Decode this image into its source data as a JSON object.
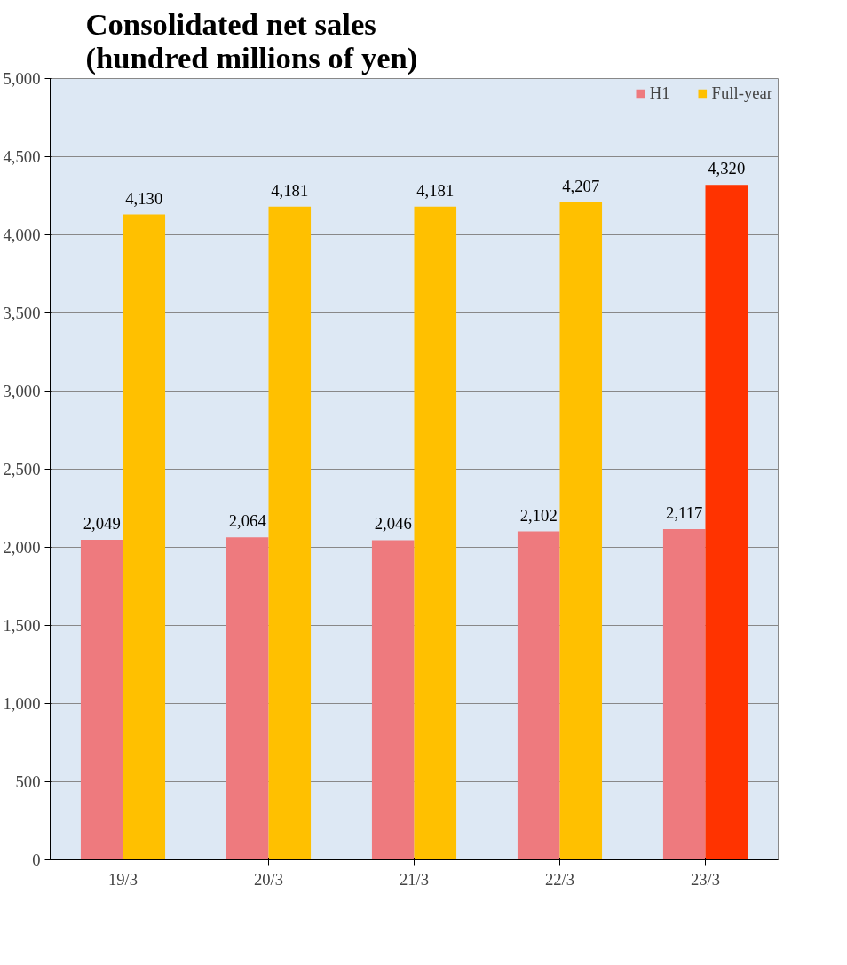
{
  "chart_data": {
    "type": "bar",
    "title": "Consolidated net sales\n(hundred millions of yen)",
    "categories": [
      "19/3",
      "20/3",
      "21/3",
      "22/3",
      "23/3"
    ],
    "series": [
      {
        "name": "H1",
        "color": "#ee7a7e",
        "values": [
          2049,
          2064,
          2046,
          2102,
          2117
        ],
        "value_labels": [
          "2,049",
          "2,064",
          "2,046",
          "2,102",
          "2,117"
        ]
      },
      {
        "name": "Full-year",
        "color": "#ffc000",
        "colors": [
          "#ffc000",
          "#ffc000",
          "#ffc000",
          "#ffc000",
          "#ff3300"
        ],
        "values": [
          4130,
          4181,
          4181,
          4207,
          4320
        ],
        "value_labels": [
          "4,130",
          "4,181",
          "4,181",
          "4,207",
          "4,320"
        ]
      }
    ],
    "ylim": [
      0,
      5000
    ],
    "yticks": [
      {
        "value": 0,
        "label": "0"
      },
      {
        "value": 500,
        "label": "500"
      },
      {
        "value": 1000,
        "label": "1,000"
      },
      {
        "value": 1500,
        "label": "1,500"
      },
      {
        "value": 2000,
        "label": "2,000"
      },
      {
        "value": 2500,
        "label": "2,500"
      },
      {
        "value": 3000,
        "label": "3,000"
      },
      {
        "value": 3500,
        "label": "3,500"
      },
      {
        "value": 4000,
        "label": "4,000"
      },
      {
        "value": 4500,
        "label": "4,500"
      },
      {
        "value": 5000,
        "label": "5,000"
      }
    ],
    "grid": "y",
    "legend": "top right"
  }
}
